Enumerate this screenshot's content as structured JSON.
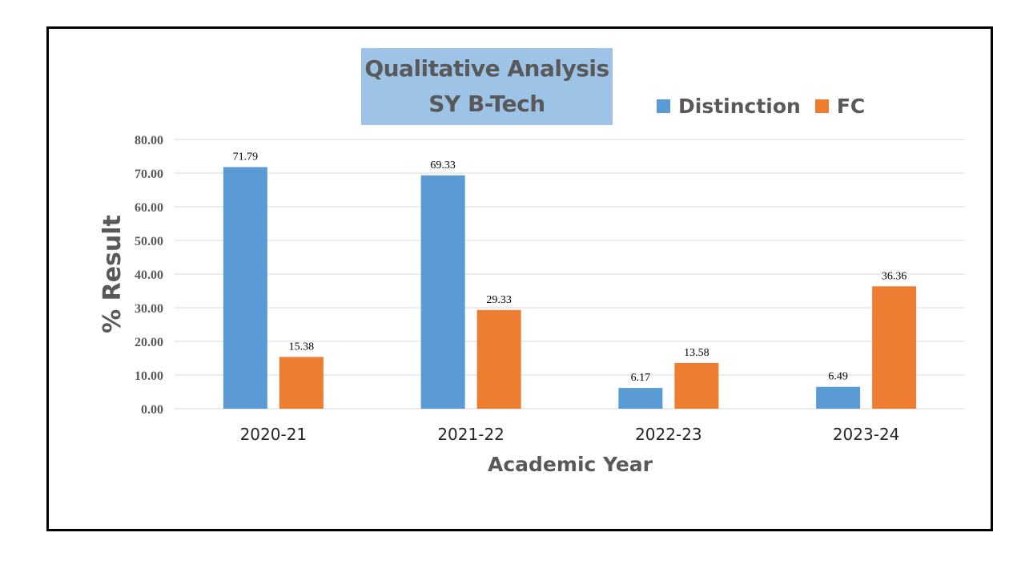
{
  "colors": {
    "distinction": "#5b9bd5",
    "fc": "#ed7d31",
    "axis_text": "#595959",
    "grid": "#d9d9d9",
    "title_bg": "#9dc3e6"
  },
  "chart_data": {
    "type": "bar",
    "title_lines": [
      "Qualitative Analysis",
      "SY B-Tech"
    ],
    "xlabel": "Academic Year",
    "ylabel": "% Result",
    "categories": [
      "2020-21",
      "2021-22",
      "2022-23",
      "2023-24"
    ],
    "series": [
      {
        "name": "Distinction",
        "values": [
          71.79,
          69.33,
          6.17,
          6.49
        ],
        "labels": [
          "71.79",
          "69.33",
          "6.17",
          "6.49"
        ]
      },
      {
        "name": "FC",
        "values": [
          15.38,
          29.33,
          13.58,
          36.36
        ],
        "labels": [
          "15.38",
          "29.33",
          "13.58",
          "36.36"
        ]
      }
    ],
    "ylim": [
      0,
      80
    ],
    "yticks": [
      "0.00",
      "10.00",
      "20.00",
      "30.00",
      "40.00",
      "50.00",
      "60.00",
      "70.00",
      "80.00"
    ],
    "grid": true,
    "legend_position": "top-right"
  }
}
